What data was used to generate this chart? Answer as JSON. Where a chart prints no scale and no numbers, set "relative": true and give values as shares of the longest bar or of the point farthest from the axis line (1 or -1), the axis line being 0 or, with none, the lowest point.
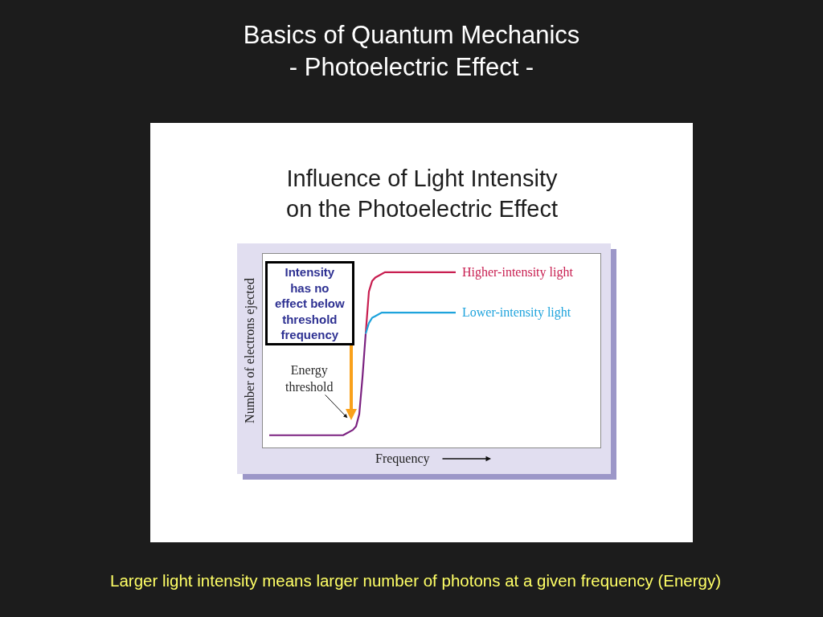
{
  "chart_data": {
    "type": "line",
    "title": "Basics of Quantum Mechanics\n- Photoelectric Effect -",
    "subtitle": "Influence of Light Intensity\non the Photoelectric Effect",
    "xlabel": "Frequency",
    "ylabel": "Number of electrons ejected",
    "relative": true,
    "categories": [
      null,
      null,
      null,
      null,
      null,
      null,
      null,
      null,
      null,
      null,
      null,
      null,
      null,
      null,
      null,
      null,
      null,
      null,
      null,
      null,
      null,
      null,
      null,
      null,
      null,
      null,
      null,
      null,
      null,
      null,
      null,
      null,
      null,
      null,
      null,
      null,
      null,
      null,
      null,
      null,
      null,
      null,
      null,
      null,
      null,
      null,
      null,
      null,
      null,
      null,
      null,
      null,
      null,
      null,
      null,
      null,
      null,
      null,
      null
    ],
    "series": [
      {
        "color": "#7b2180",
        "values": [
          0.07,
          0.07,
          0.07,
          0.07,
          0.07,
          0.07,
          0.07,
          0.07,
          0.07,
          0.07,
          0.07,
          0.07,
          0.07,
          0.07,
          0.07,
          0.07,
          0.07,
          0.07,
          0.07,
          0.07,
          0.07,
          0.07,
          0.07,
          0.07,
          0.08,
          0.09,
          0.1,
          0.12,
          0.19,
          0.4,
          0.65,
          null,
          null,
          null,
          null,
          null,
          null,
          null,
          null,
          null,
          null,
          null,
          null,
          null,
          null,
          null,
          null,
          null,
          null,
          null,
          null,
          null,
          null,
          null,
          null,
          null,
          null,
          null,
          null
        ]
      },
      {
        "name": "Higher-intensity light",
        "color": "#c81e50",
        "values": [
          null,
          null,
          null,
          null,
          null,
          null,
          null,
          null,
          null,
          null,
          null,
          null,
          null,
          null,
          null,
          null,
          null,
          null,
          null,
          null,
          null,
          null,
          null,
          null,
          null,
          null,
          null,
          null,
          null,
          null,
          0.65,
          0.89,
          0.95,
          0.97,
          0.98,
          0.99,
          1.0,
          1.0,
          1.0,
          1.0,
          1.0,
          1.0,
          1.0,
          1.0,
          1.0,
          1.0,
          1.0,
          1.0,
          1.0,
          1.0,
          1.0,
          1.0,
          1.0,
          1.0,
          1.0,
          1.0,
          1.0,
          1.0,
          1.0
        ]
      },
      {
        "name": "Lower-intensity light",
        "color": "#1ea3dc",
        "values": [
          null,
          null,
          null,
          null,
          null,
          null,
          null,
          null,
          null,
          null,
          null,
          null,
          null,
          null,
          null,
          null,
          null,
          null,
          null,
          null,
          null,
          null,
          null,
          null,
          null,
          null,
          null,
          null,
          null,
          null,
          0.65,
          0.71,
          0.74,
          0.75,
          0.76,
          0.77,
          0.77,
          0.77,
          0.77,
          0.77,
          0.77,
          0.77,
          0.77,
          0.77,
          0.77,
          0.77,
          0.77,
          0.77,
          0.77,
          0.77,
          0.77,
          0.77,
          0.77,
          0.77,
          0.77,
          0.77,
          0.77,
          0.77,
          0.77
        ]
      }
    ],
    "annotations": [
      "Intensity\nhas no\neffect below\nthreshold\nfrequency",
      "Energy\nthreshold",
      "Larger light intensity means larger number of photons at a given frequency (Energy)"
    ]
  }
}
